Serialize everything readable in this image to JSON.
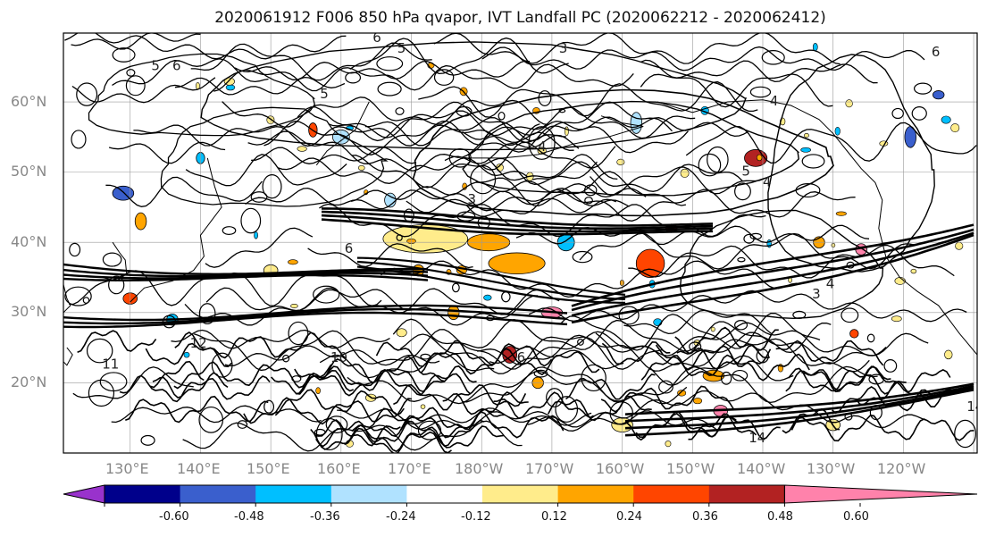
{
  "title": "2020061912 F006 850 hPa qvapor, IVT Landfall PC (2020062212 - 2020062412)",
  "lat_labels": [
    "60°N",
    "50°N",
    "40°N",
    "30°N",
    "20°N"
  ],
  "lon_labels": [
    "130°E",
    "140°E",
    "150°E",
    "160°E",
    "170°E",
    "180°W",
    "170°W",
    "160°W",
    "150°W",
    "140°W",
    "130°W",
    "120°W"
  ],
  "colorbar": {
    "ticks": [
      "-0.60",
      "-0.48",
      "-0.36",
      "-0.24",
      "-0.12",
      "0.12",
      "0.24",
      "0.36",
      "0.48",
      "0.60"
    ],
    "colors": [
      "#9932cc",
      "#00008b",
      "#3a5fcd",
      "#00bfff",
      "#b0e2ff",
      "#ffffff",
      "#ffec8b",
      "#ffa500",
      "#ff4500",
      "#b22222",
      "#ff82ab"
    ]
  },
  "contour_labels": [
    {
      "text": "5",
      "lon": 133,
      "lat": 64.5
    },
    {
      "text": "6",
      "lon": 136,
      "lat": 64.5
    },
    {
      "text": "5",
      "lon": 168,
      "lat": 67
    },
    {
      "text": "6",
      "lon": 164.5,
      "lat": 68.5
    },
    {
      "text": "3",
      "lon": 191,
      "lat": 67
    },
    {
      "text": "4",
      "lon": 188,
      "lat": 53
    },
    {
      "text": "3",
      "lon": 178,
      "lat": 45.5
    },
    {
      "text": "5",
      "lon": 217,
      "lat": 49.5
    },
    {
      "text": "4",
      "lon": 220,
      "lat": 48
    },
    {
      "text": "6",
      "lon": 244,
      "lat": 66.5
    },
    {
      "text": "4",
      "lon": 221,
      "lat": 59.5
    },
    {
      "text": "3",
      "lon": 227,
      "lat": 32
    },
    {
      "text": "4",
      "lon": 229,
      "lat": 33.5
    },
    {
      "text": "6",
      "lon": 160.5,
      "lat": 38.5
    },
    {
      "text": "5",
      "lon": 157,
      "lat": 60.5
    },
    {
      "text": "12",
      "lon": 138.5,
      "lat": 25
    },
    {
      "text": "10",
      "lon": 158.5,
      "lat": 23
    },
    {
      "text": "11",
      "lon": 126,
      "lat": 22
    },
    {
      "text": "14",
      "lon": 249,
      "lat": 16
    },
    {
      "text": "14",
      "lon": 218,
      "lat": 11.5
    },
    {
      "text": "6",
      "lon": 185,
      "lat": 23
    }
  ]
}
